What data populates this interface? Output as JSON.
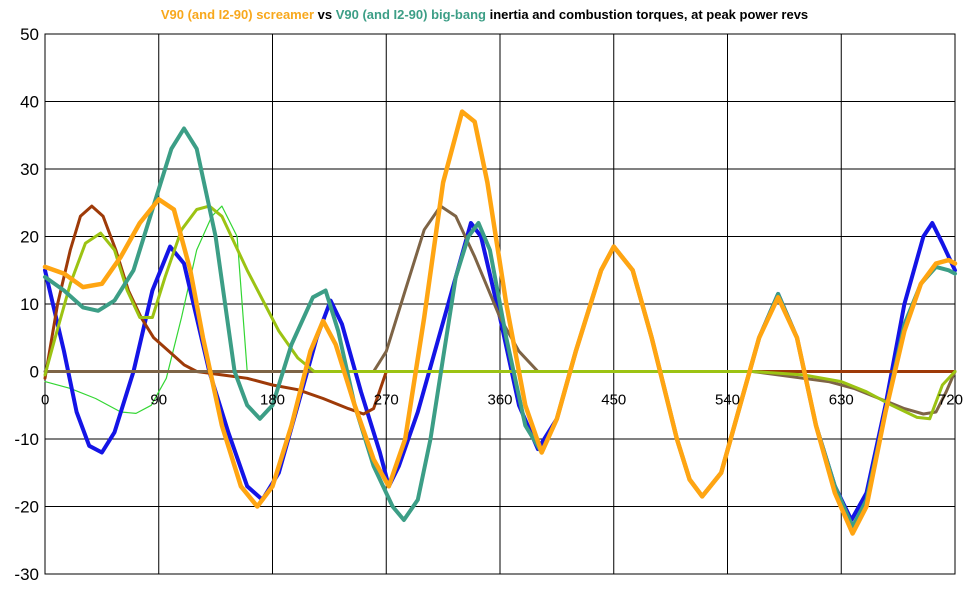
{
  "chart_data": {
    "type": "line",
    "title_parts": [
      {
        "text": "V90 (and I2-90) screamer",
        "color": "#F8A81C"
      },
      {
        "text": " vs ",
        "color": "#000000"
      },
      {
        "text": "V90 (and I2-90) big-bang",
        "color": "#3C9E86"
      },
      {
        "text": " inertia and combustion torques, at peak power revs",
        "color": "#000000"
      }
    ],
    "xlim": [
      0,
      720
    ],
    "ylim": [
      -30,
      50
    ],
    "x_ticks": [
      "0",
      "90",
      "180",
      "270",
      "360",
      "450",
      "540",
      "630",
      "720"
    ],
    "y_ticks": [
      "50",
      "40",
      "30",
      "20",
      "10",
      "0",
      "-10",
      "-20",
      "-30"
    ],
    "grid": true,
    "series": [
      {
        "color": "#00E5E5",
        "width": 1.2,
        "points": [
          [
            0,
            0
          ],
          [
            720,
            0
          ]
        ]
      },
      {
        "color": "#33D633",
        "width": 1.2,
        "points": [
          [
            0,
            -1.5
          ],
          [
            20,
            -2.5
          ],
          [
            40,
            -4
          ],
          [
            60,
            -6
          ],
          [
            72,
            -6.2
          ],
          [
            84,
            -5
          ],
          [
            96,
            -1
          ],
          [
            108,
            8
          ],
          [
            120,
            18
          ],
          [
            132,
            23
          ],
          [
            140,
            24.5
          ],
          [
            152,
            20
          ],
          [
            160,
            0
          ],
          [
            720,
            0
          ]
        ]
      },
      {
        "color": "#1414E6",
        "width": 4,
        "points": [
          [
            0,
            15
          ],
          [
            15,
            3
          ],
          [
            25,
            -6
          ],
          [
            35,
            -11
          ],
          [
            45,
            -12
          ],
          [
            55,
            -9
          ],
          [
            70,
            0
          ],
          [
            85,
            12
          ],
          [
            99,
            18.5
          ],
          [
            110,
            16
          ],
          [
            120,
            8
          ],
          [
            130,
            0
          ],
          [
            145,
            -9
          ],
          [
            160,
            -17
          ],
          [
            172,
            -19
          ],
          [
            185,
            -15
          ],
          [
            200,
            -5
          ],
          [
            215,
            5
          ],
          [
            226,
            10.5
          ],
          [
            235,
            7
          ],
          [
            250,
            -3
          ],
          [
            265,
            -12
          ],
          [
            272,
            -17
          ],
          [
            280,
            -14
          ],
          [
            295,
            -6
          ],
          [
            310,
            4
          ],
          [
            325,
            14
          ],
          [
            337,
            22
          ],
          [
            345,
            20
          ],
          [
            360,
            8
          ],
          [
            375,
            -5
          ],
          [
            390,
            -11.5
          ],
          [
            405,
            -7
          ],
          [
            420,
            3
          ],
          [
            440,
            15
          ],
          [
            450,
            18.5
          ],
          [
            465,
            15
          ],
          [
            480,
            5
          ],
          [
            500,
            -10
          ],
          [
            510,
            -16
          ],
          [
            520,
            -18.5
          ],
          [
            535,
            -15
          ],
          [
            550,
            -5
          ],
          [
            565,
            5
          ],
          [
            580,
            11.5
          ],
          [
            595,
            5
          ],
          [
            610,
            -8
          ],
          [
            625,
            -17
          ],
          [
            638,
            -22
          ],
          [
            650,
            -18
          ],
          [
            665,
            -5
          ],
          [
            680,
            10
          ],
          [
            695,
            20
          ],
          [
            702,
            22
          ],
          [
            710,
            19
          ],
          [
            720,
            15
          ]
        ]
      },
      {
        "color": "#9E3A08",
        "width": 3,
        "points": [
          [
            0,
            -1
          ],
          [
            10,
            10
          ],
          [
            20,
            18
          ],
          [
            28,
            23
          ],
          [
            37,
            24.5
          ],
          [
            46,
            23
          ],
          [
            56,
            18
          ],
          [
            66,
            12
          ],
          [
            76,
            8
          ],
          [
            86,
            5
          ],
          [
            98,
            3
          ],
          [
            110,
            1
          ],
          [
            120,
            0
          ],
          [
            140,
            -0.5
          ],
          [
            160,
            -1
          ],
          [
            180,
            -2
          ],
          [
            200,
            -2.7
          ],
          [
            220,
            -4
          ],
          [
            240,
            -5.5
          ],
          [
            252,
            -6.3
          ],
          [
            260,
            -5.5
          ],
          [
            270,
            0
          ],
          [
            720,
            0
          ]
        ]
      },
      {
        "color": "#7E6446",
        "width": 3,
        "points": [
          [
            0,
            0
          ],
          [
            260,
            0
          ],
          [
            270,
            3
          ],
          [
            285,
            12
          ],
          [
            300,
            21
          ],
          [
            313,
            24.5
          ],
          [
            325,
            23
          ],
          [
            340,
            17
          ],
          [
            360,
            8
          ],
          [
            375,
            3
          ],
          [
            390,
            0
          ],
          [
            560,
            0
          ],
          [
            580,
            -0.5
          ],
          [
            600,
            -1
          ],
          [
            620,
            -1.5
          ],
          [
            640,
            -2.5
          ],
          [
            660,
            -4
          ],
          [
            680,
            -5.5
          ],
          [
            695,
            -6.3
          ],
          [
            705,
            -6
          ],
          [
            713,
            -3
          ],
          [
            720,
            0
          ]
        ]
      },
      {
        "color": "#9CC313",
        "width": 3,
        "points": [
          [
            0,
            -0.5
          ],
          [
            8,
            5
          ],
          [
            20,
            13
          ],
          [
            32,
            19
          ],
          [
            44,
            20.5
          ],
          [
            55,
            18
          ],
          [
            65,
            12
          ],
          [
            75,
            8
          ],
          [
            85,
            8
          ],
          [
            95,
            14
          ],
          [
            108,
            21
          ],
          [
            120,
            24
          ],
          [
            130,
            24.5
          ],
          [
            140,
            23
          ],
          [
            160,
            15
          ],
          [
            185,
            6
          ],
          [
            200,
            2
          ],
          [
            213,
            0
          ],
          [
            560,
            0
          ],
          [
            600,
            -0.5
          ],
          [
            630,
            -1.5
          ],
          [
            650,
            -3
          ],
          [
            670,
            -5
          ],
          [
            690,
            -6.8
          ],
          [
            700,
            -7
          ],
          [
            710,
            -2
          ],
          [
            720,
            0
          ]
        ]
      },
      {
        "color": "#3C9E86",
        "width": 4,
        "points": [
          [
            0,
            14
          ],
          [
            15,
            12
          ],
          [
            30,
            9.5
          ],
          [
            42,
            9
          ],
          [
            55,
            10.5
          ],
          [
            70,
            15
          ],
          [
            85,
            24
          ],
          [
            100,
            33
          ],
          [
            110,
            36
          ],
          [
            120,
            33
          ],
          [
            135,
            20
          ],
          [
            150,
            0
          ],
          [
            160,
            -5
          ],
          [
            170,
            -7
          ],
          [
            180,
            -5
          ],
          [
            195,
            4
          ],
          [
            212,
            11
          ],
          [
            222,
            12
          ],
          [
            232,
            6
          ],
          [
            245,
            -5
          ],
          [
            260,
            -14
          ],
          [
            275,
            -20
          ],
          [
            284,
            -22
          ],
          [
            295,
            -19
          ],
          [
            305,
            -10
          ],
          [
            315,
            2
          ],
          [
            325,
            14
          ],
          [
            335,
            20
          ],
          [
            343,
            22
          ],
          [
            352,
            18
          ],
          [
            365,
            5
          ],
          [
            380,
            -8
          ],
          [
            393,
            -12
          ],
          [
            405,
            -7
          ],
          [
            420,
            3
          ],
          [
            440,
            15
          ],
          [
            450,
            18.5
          ],
          [
            465,
            15
          ],
          [
            480,
            5
          ],
          [
            500,
            -10
          ],
          [
            510,
            -16
          ],
          [
            520,
            -18.5
          ],
          [
            535,
            -15
          ],
          [
            550,
            -5
          ],
          [
            565,
            5
          ],
          [
            580,
            11.5
          ],
          [
            595,
            5
          ],
          [
            610,
            -8
          ],
          [
            625,
            -17
          ],
          [
            639,
            -23
          ],
          [
            650,
            -19
          ],
          [
            665,
            -6
          ],
          [
            680,
            7
          ],
          [
            693,
            13
          ],
          [
            705,
            15.5
          ],
          [
            715,
            15
          ],
          [
            720,
            14.5
          ]
        ]
      },
      {
        "color": "#FFA512",
        "width": 4.5,
        "points": [
          [
            0,
            15.5
          ],
          [
            15,
            14.5
          ],
          [
            30,
            12.5
          ],
          [
            45,
            13
          ],
          [
            60,
            17
          ],
          [
            75,
            22
          ],
          [
            90,
            25.5
          ],
          [
            102,
            24
          ],
          [
            115,
            15
          ],
          [
            125,
            5
          ],
          [
            140,
            -8
          ],
          [
            155,
            -17
          ],
          [
            168,
            -20
          ],
          [
            180,
            -17
          ],
          [
            195,
            -8
          ],
          [
            210,
            3
          ],
          [
            220,
            7.5
          ],
          [
            230,
            4
          ],
          [
            245,
            -5
          ],
          [
            260,
            -13
          ],
          [
            272,
            -17
          ],
          [
            285,
            -10
          ],
          [
            300,
            8
          ],
          [
            315,
            28
          ],
          [
            330,
            38.5
          ],
          [
            340,
            37
          ],
          [
            350,
            28
          ],
          [
            365,
            10
          ],
          [
            380,
            -5
          ],
          [
            393,
            -12
          ],
          [
            405,
            -7
          ],
          [
            420,
            3
          ],
          [
            440,
            15
          ],
          [
            450,
            18.5
          ],
          [
            465,
            15
          ],
          [
            480,
            5
          ],
          [
            500,
            -10
          ],
          [
            510,
            -16
          ],
          [
            520,
            -18.5
          ],
          [
            535,
            -15
          ],
          [
            550,
            -5
          ],
          [
            565,
            5
          ],
          [
            580,
            11
          ],
          [
            595,
            5
          ],
          [
            610,
            -8
          ],
          [
            625,
            -18
          ],
          [
            639,
            -24
          ],
          [
            650,
            -20
          ],
          [
            665,
            -6
          ],
          [
            680,
            6
          ],
          [
            693,
            13
          ],
          [
            705,
            16
          ],
          [
            715,
            16.5
          ],
          [
            720,
            16
          ]
        ]
      }
    ]
  }
}
